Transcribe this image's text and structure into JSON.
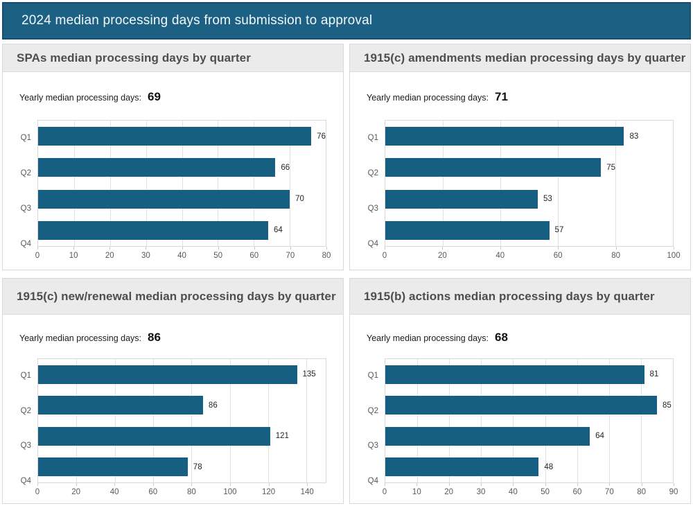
{
  "header": {
    "title": "2024 median processing days from submission to approval"
  },
  "colors": {
    "header_bg": "#1C6183",
    "header_border": "#14506E",
    "bar": "#175F82",
    "panel_head_bg": "#EBEBEB",
    "gridline": "#E2E2E2"
  },
  "chart_data": [
    {
      "type": "bar",
      "orientation": "horizontal",
      "title": "SPAs median processing days by quarter",
      "yearly_label": "Yearly median processing days:",
      "yearly_value": "69",
      "categories": [
        "Q1",
        "Q2",
        "Q3",
        "Q4"
      ],
      "values": [
        76,
        66,
        70,
        64
      ],
      "xlim": [
        0,
        80
      ],
      "xticks": [
        0,
        10,
        20,
        30,
        40,
        50,
        60,
        70,
        80
      ],
      "grid": true,
      "value_labels": true,
      "legend": "none"
    },
    {
      "type": "bar",
      "orientation": "horizontal",
      "title": "1915(c) amendments median processing days by quarter",
      "yearly_label": "Yearly median processing days:",
      "yearly_value": "71",
      "categories": [
        "Q1",
        "Q2",
        "Q3",
        "Q4"
      ],
      "values": [
        83,
        75,
        53,
        57
      ],
      "xlim": [
        0,
        100
      ],
      "xticks": [
        0,
        20,
        40,
        60,
        80,
        100
      ],
      "grid": true,
      "value_labels": true,
      "legend": "none"
    },
    {
      "type": "bar",
      "orientation": "horizontal",
      "title": "1915(c) new/renewal median processing days by quarter",
      "yearly_label": "Yearly median processing days:",
      "yearly_value": "86",
      "categories": [
        "Q1",
        "Q2",
        "Q3",
        "Q4"
      ],
      "values": [
        135,
        86,
        121,
        78
      ],
      "xlim": [
        0,
        150
      ],
      "xticks": [
        0,
        20,
        40,
        60,
        80,
        100,
        120,
        140
      ],
      "grid": true,
      "value_labels": true,
      "legend": "none"
    },
    {
      "type": "bar",
      "orientation": "horizontal",
      "title": "1915(b) actions median processing days by quarter",
      "yearly_label": "Yearly median processing days:",
      "yearly_value": "68",
      "categories": [
        "Q1",
        "Q2",
        "Q3",
        "Q4"
      ],
      "values": [
        81,
        85,
        64,
        48
      ],
      "xlim": [
        0,
        90
      ],
      "xticks": [
        0,
        10,
        20,
        30,
        40,
        50,
        60,
        70,
        80,
        90
      ],
      "grid": true,
      "value_labels": true,
      "legend": "none"
    }
  ]
}
